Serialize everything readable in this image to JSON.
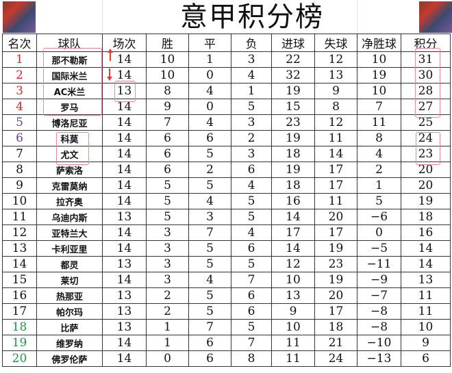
{
  "title": "意甲积分榜",
  "headers": [
    "名次",
    "球队",
    "场次",
    "胜",
    "平",
    "负",
    "进球",
    "失球",
    "净胜球",
    "积分"
  ],
  "rank_colors": {
    "top4": "#e0202a",
    "europe": "#6a3aa8",
    "mid": "#111111",
    "relegation": "#1a9a40"
  },
  "highlight_color": "#e88a8f",
  "rows": [
    {
      "rank": "1",
      "team": "那不勒斯",
      "played": "14",
      "w": "10",
      "d": "1",
      "l": "3",
      "gf": "22",
      "ga": "12",
      "gd": "10",
      "pts": "31",
      "zone": "top4"
    },
    {
      "rank": "2",
      "team": "国际米兰",
      "played": "14",
      "w": "10",
      "d": "0",
      "l": "4",
      "gf": "32",
      "ga": "13",
      "gd": "19",
      "pts": "30",
      "zone": "top4"
    },
    {
      "rank": "3",
      "team": "AC米兰",
      "played": "13",
      "w": "8",
      "d": "4",
      "l": "1",
      "gf": "19",
      "ga": "9",
      "gd": "10",
      "pts": "28",
      "zone": "top4"
    },
    {
      "rank": "4",
      "team": "罗马",
      "played": "14",
      "w": "9",
      "d": "0",
      "l": "5",
      "gf": "15",
      "ga": "8",
      "gd": "7",
      "pts": "27",
      "zone": "top4"
    },
    {
      "rank": "5",
      "team": "博洛尼亚",
      "played": "14",
      "w": "7",
      "d": "4",
      "l": "3",
      "gf": "23",
      "ga": "12",
      "gd": "11",
      "pts": "25",
      "zone": "europe"
    },
    {
      "rank": "6",
      "team": "科莫",
      "played": "14",
      "w": "6",
      "d": "6",
      "l": "2",
      "gf": "19",
      "ga": "11",
      "gd": "8",
      "pts": "24",
      "zone": "europe"
    },
    {
      "rank": "7",
      "team": "尤文",
      "played": "14",
      "w": "6",
      "d": "5",
      "l": "3",
      "gf": "18",
      "ga": "14",
      "gd": "4",
      "pts": "23",
      "zone": "mid"
    },
    {
      "rank": "8",
      "team": "萨索洛",
      "played": "14",
      "w": "6",
      "d": "2",
      "l": "6",
      "gf": "19",
      "ga": "17",
      "gd": "2",
      "pts": "20",
      "zone": "mid"
    },
    {
      "rank": "9",
      "team": "克雷莫纳",
      "played": "14",
      "w": "5",
      "d": "5",
      "l": "4",
      "gf": "18",
      "ga": "17",
      "gd": "1",
      "pts": "20",
      "zone": "mid"
    },
    {
      "rank": "10",
      "team": "拉齐奥",
      "played": "14",
      "w": "5",
      "d": "4",
      "l": "5",
      "gf": "16",
      "ga": "11",
      "gd": "5",
      "pts": "19",
      "zone": "mid"
    },
    {
      "rank": "11",
      "team": "乌迪内斯",
      "played": "13",
      "w": "5",
      "d": "3",
      "l": "5",
      "gf": "14",
      "ga": "20",
      "gd": "−6",
      "pts": "18",
      "zone": "mid"
    },
    {
      "rank": "12",
      "team": "亚特兰大",
      "played": "14",
      "w": "3",
      "d": "7",
      "l": "4",
      "gf": "17",
      "ga": "17",
      "gd": "0",
      "pts": "16",
      "zone": "mid"
    },
    {
      "rank": "13",
      "team": "卡利亚里",
      "played": "14",
      "w": "3",
      "d": "5",
      "l": "6",
      "gf": "14",
      "ga": "19",
      "gd": "−5",
      "pts": "14",
      "zone": "mid"
    },
    {
      "rank": "14",
      "team": "都灵",
      "played": "13",
      "w": "3",
      "d": "5",
      "l": "5",
      "gf": "12",
      "ga": "23",
      "gd": "−11",
      "pts": "14",
      "zone": "mid"
    },
    {
      "rank": "15",
      "team": "莱切",
      "played": "14",
      "w": "3",
      "d": "4",
      "l": "7",
      "gf": "10",
      "ga": "19",
      "gd": "−9",
      "pts": "13",
      "zone": "mid"
    },
    {
      "rank": "16",
      "team": "热那亚",
      "played": "13",
      "w": "2",
      "d": "5",
      "l": "6",
      "gf": "13",
      "ga": "20",
      "gd": "−7",
      "pts": "11",
      "zone": "mid"
    },
    {
      "rank": "17",
      "team": "帕尔玛",
      "played": "13",
      "w": "2",
      "d": "5",
      "l": "6",
      "gf": "9",
      "ga": "17",
      "gd": "−8",
      "pts": "11",
      "zone": "mid"
    },
    {
      "rank": "18",
      "team": "比萨",
      "played": "13",
      "w": "1",
      "d": "7",
      "l": "5",
      "gf": "10",
      "ga": "18",
      "gd": "−8",
      "pts": "10",
      "zone": "relegation"
    },
    {
      "rank": "19",
      "team": "维罗纳",
      "played": "14",
      "w": "1",
      "d": "6",
      "l": "7",
      "gf": "11",
      "ga": "21",
      "gd": "−10",
      "pts": "9",
      "zone": "relegation"
    },
    {
      "rank": "20",
      "team": "佛罗伦萨",
      "played": "14",
      "w": "0",
      "d": "6",
      "l": "8",
      "gf": "11",
      "ga": "24",
      "gd": "−13",
      "pts": "6",
      "zone": "relegation"
    }
  ]
}
